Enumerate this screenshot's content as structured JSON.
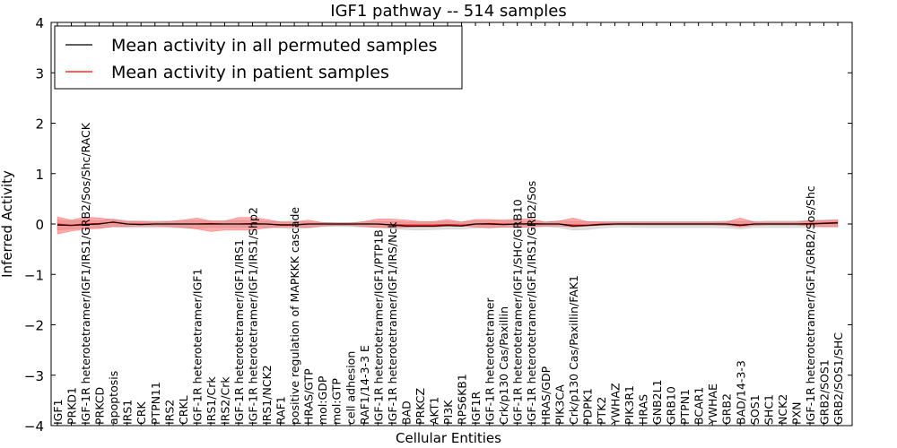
{
  "chart_data": {
    "type": "line",
    "title": "IGF1 pathway -- 514 samples",
    "xlabel": "Cellular Entities",
    "ylabel": "Inferred Activity",
    "ylim": [
      -4,
      4
    ],
    "yticks": [
      -4,
      -3,
      -2,
      -1,
      0,
      1,
      2,
      3,
      4
    ],
    "ytick_labels": [
      "−4",
      "−3",
      "−2",
      "−1",
      "0",
      "1",
      "2",
      "3",
      "4"
    ],
    "grid": false,
    "legend_position": "top-left",
    "legend": [
      {
        "label": "Mean activity in all permuted samples",
        "color": "#000000"
      },
      {
        "label": "Mean activity in patient samples",
        "color": "#ff0000"
      }
    ],
    "categories": [
      "IGF1",
      "PRKD1",
      "IGF-1R heterotetramer/IGF1/IRS1/GRB2/Sos/Shc/RACK",
      "PRKCD",
      "apoptosis",
      "IRS1",
      "CRK",
      "PTPN11",
      "IRS2",
      "CRKL",
      "IGF-1R heterotetramer/IGF1",
      "IRS1/Crk",
      "IRS2/Crk",
      "IGF-1R heterotetramer/IGF1/IRS1",
      "IGF-1R heterotetramer/IGF1/IRS1/Shp2",
      "IRS1/NCK2",
      "RAF1",
      "positive regulation of MAPKKK cascade",
      "HRAS/GTP",
      "mol:GDP",
      "mol:GTP",
      "cell adhesion",
      "RAF1/14-3-3 E",
      "IGF-1R heterotetramer/IGF1/PTP1B",
      "IGF-1R heterotetramer/IGF1/IRS/Nck",
      "BAD",
      "PRKCZ",
      "AKT1",
      "PI3K",
      "RPS6KB1",
      "IGF1R",
      "IGF-1R heterotetramer",
      "Crk/p130 Cas/Paxillin",
      "IGF-1R heterotetramer/IGF1/SHC/GRB10",
      "IGF-1R heterotetramer/IGF1/IRS1/GRB2/Sos",
      "HRAS/GDP",
      "PIK3CA",
      "Crk/p130 Cas/Paxillin/FAK1",
      "PDPK1",
      "PTK2",
      "YWHAZ",
      "PIK3R1",
      "HRAS",
      "GNB2L1",
      "GRB10",
      "PTPN1",
      "BCAR1",
      "YWHAE",
      "GRB2",
      "BAD/14-3-3",
      "SOS1",
      "SHC1",
      "NCK2",
      "PXN",
      "IGF-1R heterotetramer/IGF1/GRB2/Sos/Shc",
      "GRB2/SOS1",
      "GRB2/SOS1/SHC"
    ],
    "series": [
      {
        "name": "Mean activity in all permuted samples",
        "values": [
          -0.02,
          -0.03,
          -0.01,
          0.0,
          0.04,
          0.0,
          -0.01,
          0.0,
          0.0,
          0.0,
          0.0,
          0.0,
          0.0,
          0.0,
          0.0,
          0.0,
          -0.02,
          -0.02,
          0.0,
          0.0,
          0.0,
          0.0,
          0.0,
          0.0,
          -0.02,
          -0.04,
          -0.04,
          -0.04,
          -0.03,
          -0.04,
          0.0,
          0.0,
          -0.01,
          0.0,
          0.0,
          0.0,
          0.0,
          -0.04,
          -0.03,
          -0.01,
          0.0,
          0.0,
          0.0,
          0.0,
          0.0,
          0.0,
          0.0,
          0.0,
          0.0,
          -0.03,
          0.0,
          0.0,
          0.0,
          0.0,
          0.0,
          0.01,
          0.02
        ]
      },
      {
        "name": "Mean activity in patient samples",
        "values": [
          0.0,
          -0.02,
          0.0,
          0.01,
          0.03,
          0.0,
          0.0,
          0.0,
          0.0,
          0.0,
          0.0,
          0.01,
          0.0,
          0.0,
          0.01,
          0.0,
          -0.01,
          -0.01,
          0.0,
          0.0,
          0.0,
          0.0,
          0.0,
          0.0,
          -0.01,
          -0.02,
          -0.02,
          -0.02,
          -0.01,
          -0.02,
          0.0,
          0.01,
          0.0,
          0.0,
          0.01,
          0.0,
          0.0,
          -0.02,
          -0.02,
          0.0,
          0.0,
          0.0,
          0.0,
          0.0,
          0.0,
          0.0,
          0.0,
          0.0,
          0.0,
          -0.01,
          0.0,
          0.0,
          0.0,
          0.0,
          0.01,
          0.02,
          0.03
        ]
      }
    ],
    "bands": [
      {
        "name": "Permuted samples spread",
        "color": "#aaaaaa",
        "lower": [
          -0.12,
          -0.1,
          -0.08,
          -0.07,
          -0.06,
          -0.07,
          -0.07,
          -0.07,
          -0.07,
          -0.08,
          -0.08,
          -0.07,
          -0.07,
          -0.07,
          -0.06,
          -0.06,
          -0.08,
          -0.1,
          -0.08,
          -0.05,
          -0.05,
          -0.05,
          -0.06,
          -0.07,
          -0.09,
          -0.11,
          -0.12,
          -0.11,
          -0.1,
          -0.1,
          -0.08,
          -0.07,
          -0.07,
          -0.07,
          -0.06,
          -0.05,
          -0.07,
          -0.12,
          -0.11,
          -0.08,
          -0.06,
          -0.06,
          -0.07,
          -0.07,
          -0.07,
          -0.07,
          -0.07,
          -0.07,
          -0.08,
          -0.1,
          -0.07,
          -0.07,
          -0.07,
          -0.07,
          -0.07,
          -0.07,
          -0.07
        ],
        "upper": [
          0.08,
          0.06,
          0.08,
          0.06,
          0.1,
          0.07,
          0.06,
          0.06,
          0.06,
          0.06,
          0.07,
          0.06,
          0.06,
          0.07,
          0.06,
          0.05,
          0.05,
          0.06,
          0.04,
          0.03,
          0.03,
          0.03,
          0.04,
          0.05,
          0.05,
          0.04,
          0.04,
          0.04,
          0.05,
          0.04,
          0.06,
          0.06,
          0.06,
          0.06,
          0.05,
          0.04,
          0.06,
          0.05,
          0.05,
          0.05,
          0.05,
          0.05,
          0.05,
          0.05,
          0.05,
          0.05,
          0.05,
          0.05,
          0.06,
          0.05,
          0.05,
          0.06,
          0.06,
          0.06,
          0.07,
          0.08,
          0.09
        ]
      },
      {
        "name": "Patient samples spread",
        "color": "#ff4444",
        "lower": [
          -0.2,
          -0.14,
          -0.1,
          -0.09,
          -0.05,
          -0.05,
          -0.04,
          -0.04,
          -0.05,
          -0.07,
          -0.1,
          -0.15,
          -0.12,
          -0.12,
          -0.12,
          -0.08,
          -0.06,
          -0.06,
          -0.07,
          -0.04,
          -0.03,
          -0.03,
          -0.05,
          -0.07,
          -0.07,
          -0.07,
          -0.06,
          -0.06,
          -0.04,
          -0.04,
          -0.06,
          -0.08,
          -0.06,
          -0.06,
          -0.06,
          -0.04,
          -0.04,
          -0.06,
          -0.04,
          -0.03,
          -0.02,
          -0.02,
          -0.02,
          -0.02,
          -0.02,
          -0.02,
          -0.02,
          -0.02,
          -0.03,
          -0.06,
          -0.03,
          -0.02,
          -0.02,
          -0.02,
          -0.04,
          -0.05,
          -0.05
        ],
        "upper": [
          0.14,
          0.08,
          0.14,
          0.12,
          0.09,
          0.05,
          0.05,
          0.04,
          0.05,
          0.08,
          0.12,
          0.06,
          0.06,
          0.13,
          0.13,
          0.09,
          0.04,
          0.04,
          0.08,
          0.03,
          0.02,
          0.02,
          0.05,
          0.1,
          0.1,
          0.08,
          0.05,
          0.05,
          0.09,
          0.04,
          0.09,
          0.09,
          0.08,
          0.1,
          0.1,
          0.04,
          0.06,
          0.12,
          0.05,
          0.04,
          0.04,
          0.04,
          0.04,
          0.04,
          0.04,
          0.04,
          0.04,
          0.04,
          0.04,
          0.12,
          0.04,
          0.04,
          0.04,
          0.04,
          0.07,
          0.07,
          0.08
        ]
      }
    ]
  }
}
